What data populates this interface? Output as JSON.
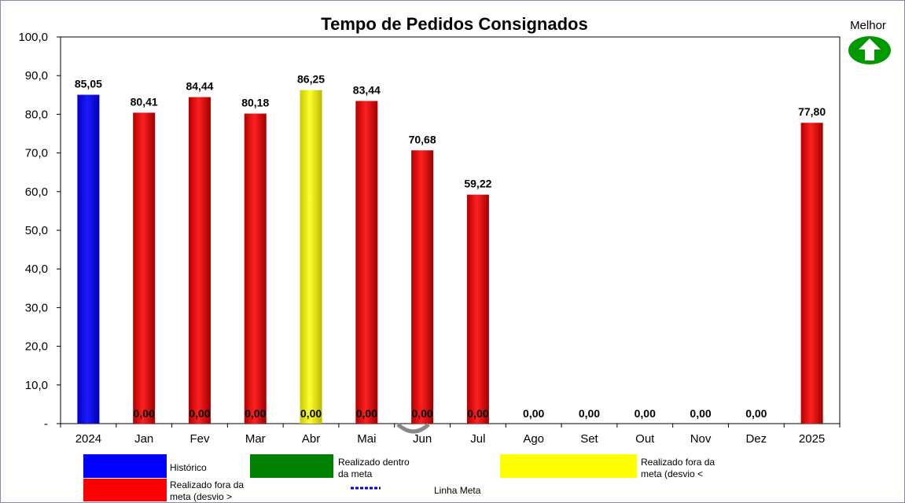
{
  "chart_data": {
    "type": "bar",
    "title": "Tempo de Pedidos Consignados",
    "categories": [
      "2024",
      "Jan",
      "Fev",
      "Mar",
      "Abr",
      "Mai",
      "Jun",
      "Jul",
      "Ago",
      "Set",
      "Out",
      "Nov",
      "Dez",
      "2025"
    ],
    "values": [
      85.05,
      80.41,
      84.44,
      80.18,
      86.25,
      83.44,
      70.68,
      59.22,
      0.0,
      0.0,
      0.0,
      0.0,
      0.0,
      77.8
    ],
    "value_labels": [
      "85,05",
      "80,41",
      "84,44",
      "80,18",
      "86,25",
      "83,44",
      "70,68",
      "59,22",
      "0,00",
      "0,00",
      "0,00",
      "0,00",
      "0,00",
      "77,80"
    ],
    "bar_colors": [
      "#0000ff",
      "#ff0000",
      "#ff0000",
      "#ff0000",
      "#ffff00",
      "#ff0000",
      "#ff0000",
      "#ff0000",
      "#ff0000",
      "#ff0000",
      "#ff0000",
      "#ff0000",
      "#ff0000",
      "#ff0000"
    ],
    "secondary_values": [
      null,
      0.0,
      0.0,
      0.0,
      0.0,
      0.0,
      0.0,
      0.0,
      null,
      null,
      null,
      null,
      null,
      null
    ],
    "secondary_labels": [
      "",
      "0,00",
      "0,00",
      "0,00",
      "0,00",
      "0,00",
      "0,00",
      "0,00",
      "",
      "",
      "",
      "",
      "",
      ""
    ],
    "ylim": [
      0,
      100
    ],
    "yticks": [
      0,
      10,
      20,
      30,
      40,
      50,
      60,
      70,
      80,
      90,
      100
    ],
    "ytick_labels": [
      "-",
      "10,0",
      "20,0",
      "30,0",
      "40,0",
      "50,0",
      "60,0",
      "70,0",
      "80,0",
      "90,0",
      "100,0"
    ],
    "xlabel": "",
    "ylabel": "",
    "grid": false,
    "legend_placement": "bottom",
    "legend": [
      {
        "label": "Histórico",
        "color": "#0000ff"
      },
      {
        "label": "Realizado dentro da meta",
        "color": "#008000"
      },
      {
        "label": "Realizado fora da meta (desvio <",
        "color": "#ffff00"
      },
      {
        "label": "Realizado fora da meta (desvio >",
        "color": "#ff0000"
      },
      {
        "label": "Linha Meta",
        "color": "#0000cc"
      }
    ]
  },
  "indicator": {
    "label": "Melhor",
    "icon": "up-arrow-icon",
    "color": "#009900"
  }
}
